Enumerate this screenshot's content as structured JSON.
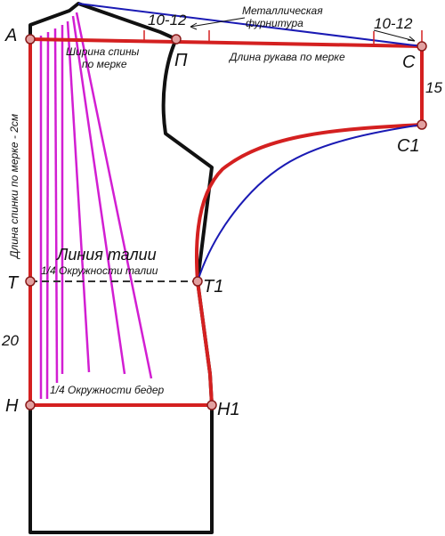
{
  "points": {
    "A": "А",
    "P": "П",
    "C": "С",
    "C1": "С1",
    "T": "Т",
    "T1": "Т1",
    "H": "Н",
    "H1": "Н1"
  },
  "measurements": {
    "top_offset": "10-12",
    "right_offset": "10-12",
    "sleeve_drop": "15",
    "waist_to_hip": "20"
  },
  "labels": {
    "metal_hardware_line1": "Металлическая",
    "metal_hardware_line2": "фурнитура",
    "back_width_line1": "Ширина спины",
    "back_width_line2": "по мерке",
    "sleeve_length": "Длина рукава по мерке",
    "back_length": "Длина спинки по мерке - 2см",
    "waist_line": "Линия талии",
    "quarter_waist": "1/4 Окружности талии",
    "quarter_hip": "1/4 Окружности бедер"
  },
  "colors": {
    "outline": "#111111",
    "construction": "#d42020",
    "alternative": "#1a1ab4",
    "darts": "#d21ed2",
    "points": "#c03030"
  }
}
